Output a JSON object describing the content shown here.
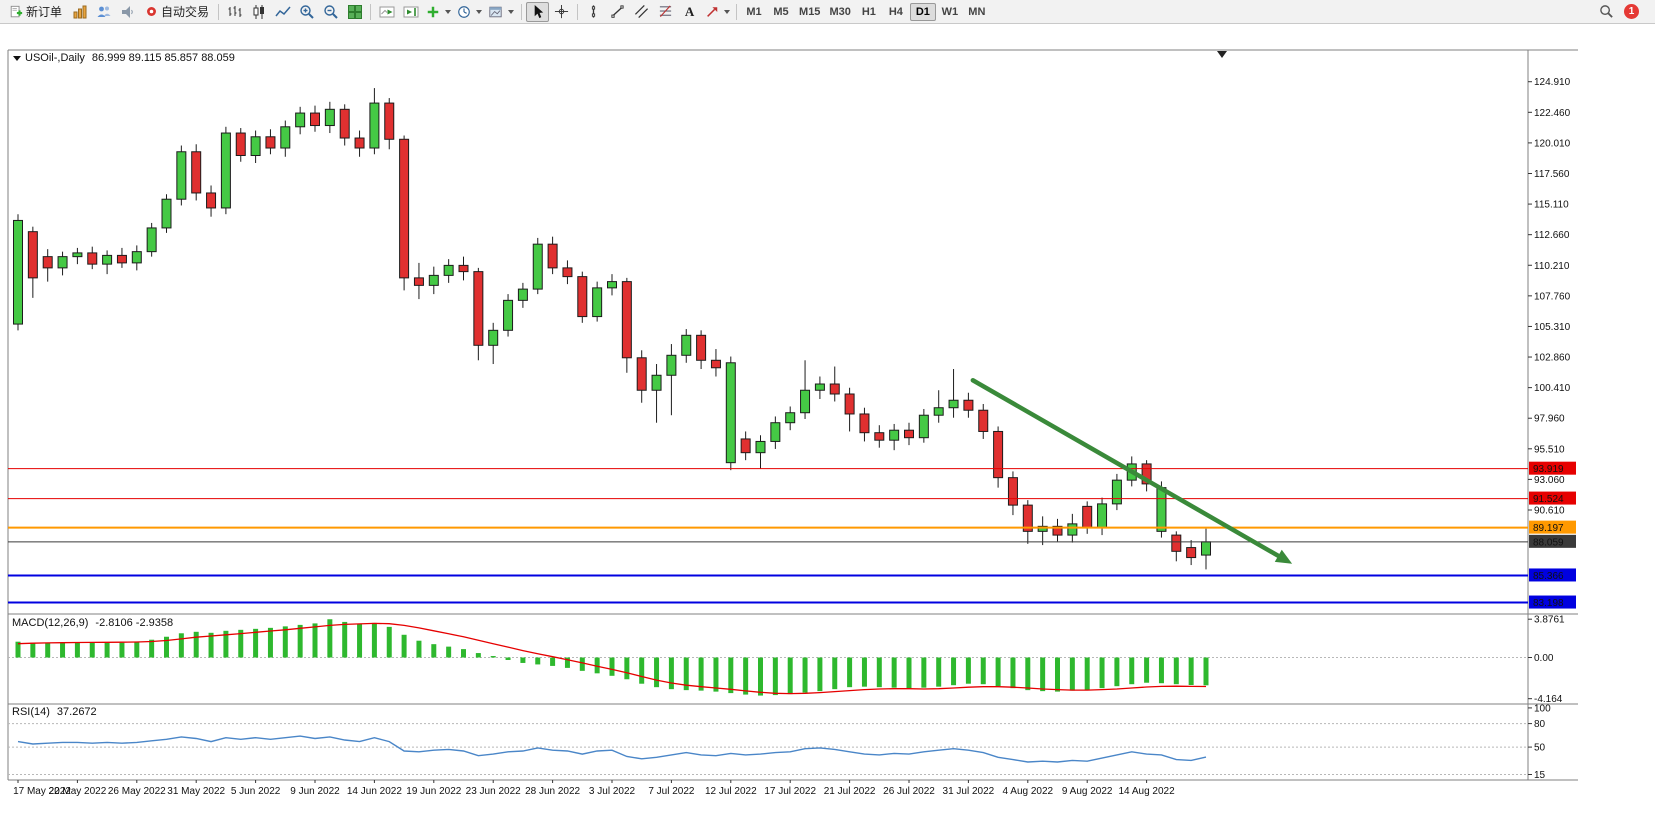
{
  "toolbar": {
    "new_order_label": "新订单",
    "auto_trading_label": "自动交易",
    "text_tool_label": "A",
    "timeframes": [
      "M1",
      "M5",
      "M15",
      "M30",
      "H1",
      "H4",
      "D1",
      "W1",
      "MN"
    ],
    "active_timeframe": "D1",
    "notification_count": "1"
  },
  "chart_header": {
    "symbol_period": "USOil-,Daily",
    "ohlc": "86.999 89.115 85.857 88.059"
  },
  "indicators": {
    "macd_label": "MACD(12,26,9)",
    "macd_values": "-2.8106 -2.9358",
    "rsi_label": "RSI(14)",
    "rsi_value": "37.2672"
  },
  "chart_data": {
    "type": "candlestick",
    "symbol": "USOil",
    "period": "Daily",
    "price_axis": {
      "min": 82.28,
      "max": 127.45,
      "ticks": [
        "124.910",
        "122.460",
        "120.010",
        "117.560",
        "115.110",
        "112.660",
        "110.210",
        "107.760",
        "105.310",
        "102.860",
        "100.410",
        "97.960",
        "95.510",
        "93.060",
        "90.610"
      ]
    },
    "x_labels": [
      "17 May 2022",
      "22 May 2022",
      "26 May 2022",
      "31 May 2022",
      "5 Jun 2022",
      "9 Jun 2022",
      "14 Jun 2022",
      "19 Jun 2022",
      "23 Jun 2022",
      "28 Jun 2022",
      "3 Jul 2022",
      "7 Jul 2022",
      "12 Jul 2022",
      "17 Jul 2022",
      "21 Jul 2022",
      "26 Jul 2022",
      "31 Jul 2022",
      "4 Aug 2022",
      "9 Aug 2022",
      "14 Aug 2022"
    ],
    "x_label_step": 4,
    "candles": [
      [
        105.5,
        114.3,
        105.0,
        113.8
      ],
      [
        112.9,
        113.3,
        107.6,
        109.2
      ],
      [
        110.9,
        111.5,
        108.9,
        110.0
      ],
      [
        110.0,
        111.3,
        109.4,
        110.9
      ],
      [
        110.9,
        111.6,
        110.3,
        111.2
      ],
      [
        111.2,
        111.7,
        109.9,
        110.3
      ],
      [
        110.3,
        111.4,
        109.5,
        111.0
      ],
      [
        111.0,
        111.6,
        110.0,
        110.4
      ],
      [
        110.4,
        111.8,
        109.8,
        111.3
      ],
      [
        111.3,
        113.6,
        110.9,
        113.2
      ],
      [
        113.2,
        115.9,
        112.8,
        115.5
      ],
      [
        115.5,
        119.8,
        115.0,
        119.3
      ],
      [
        119.3,
        119.9,
        115.4,
        116.0
      ],
      [
        116.0,
        116.6,
        114.1,
        114.8
      ],
      [
        114.8,
        121.3,
        114.3,
        120.8
      ],
      [
        120.8,
        121.2,
        118.5,
        119.0
      ],
      [
        119.0,
        121.0,
        118.4,
        120.5
      ],
      [
        120.5,
        121.1,
        119.1,
        119.6
      ],
      [
        119.6,
        121.8,
        118.9,
        121.3
      ],
      [
        121.3,
        122.9,
        120.7,
        122.4
      ],
      [
        122.4,
        123.0,
        120.9,
        121.4
      ],
      [
        121.4,
        123.3,
        120.8,
        122.7
      ],
      [
        122.7,
        123.1,
        119.8,
        120.4
      ],
      [
        120.4,
        121.0,
        118.9,
        119.6
      ],
      [
        119.6,
        124.4,
        119.1,
        123.2
      ],
      [
        123.2,
        123.6,
        119.5,
        120.3
      ],
      [
        120.3,
        120.6,
        108.2,
        109.2
      ],
      [
        109.2,
        110.4,
        107.5,
        108.6
      ],
      [
        108.6,
        110.1,
        107.9,
        109.4
      ],
      [
        109.4,
        110.7,
        108.8,
        110.2
      ],
      [
        110.2,
        110.9,
        109.0,
        109.7
      ],
      [
        109.7,
        110.0,
        102.6,
        103.8
      ],
      [
        103.8,
        105.6,
        102.3,
        105.0
      ],
      [
        105.0,
        107.9,
        104.5,
        107.4
      ],
      [
        107.4,
        108.8,
        106.8,
        108.3
      ],
      [
        108.3,
        112.4,
        107.9,
        111.9
      ],
      [
        111.9,
        112.5,
        109.5,
        110.0
      ],
      [
        110.0,
        110.6,
        108.7,
        109.3
      ],
      [
        109.3,
        109.7,
        105.6,
        106.1
      ],
      [
        106.1,
        108.9,
        105.7,
        108.4
      ],
      [
        108.4,
        109.5,
        107.8,
        108.9
      ],
      [
        108.9,
        109.2,
        101.6,
        102.8
      ],
      [
        102.8,
        103.4,
        99.2,
        100.2
      ],
      [
        100.2,
        102.3,
        97.6,
        101.4
      ],
      [
        101.4,
        103.9,
        98.2,
        103.0
      ],
      [
        103.0,
        105.1,
        102.4,
        104.6
      ],
      [
        104.6,
        105.0,
        101.9,
        102.6
      ],
      [
        102.6,
        103.5,
        101.3,
        102.0
      ],
      [
        94.4,
        102.9,
        93.8,
        102.4
      ],
      [
        96.3,
        96.9,
        94.6,
        95.2
      ],
      [
        95.2,
        96.6,
        93.9,
        96.1
      ],
      [
        96.1,
        98.1,
        95.5,
        97.6
      ],
      [
        97.6,
        98.9,
        97.0,
        98.4
      ],
      [
        98.4,
        102.6,
        97.9,
        100.2
      ],
      [
        100.2,
        101.3,
        99.5,
        100.7
      ],
      [
        100.7,
        102.1,
        99.3,
        99.9
      ],
      [
        99.9,
        100.4,
        96.9,
        98.3
      ],
      [
        98.3,
        98.8,
        96.1,
        96.8
      ],
      [
        96.8,
        97.4,
        95.6,
        96.2
      ],
      [
        96.2,
        97.5,
        95.4,
        97.0
      ],
      [
        97.0,
        97.6,
        95.8,
        96.4
      ],
      [
        96.4,
        98.7,
        96.0,
        98.2
      ],
      [
        98.2,
        100.2,
        97.6,
        98.8
      ],
      [
        98.8,
        101.9,
        98.0,
        99.4
      ],
      [
        99.4,
        100.0,
        98.0,
        98.6
      ],
      [
        98.6,
        99.1,
        96.3,
        96.9
      ],
      [
        96.9,
        97.3,
        92.4,
        93.2
      ],
      [
        93.2,
        93.7,
        90.2,
        91.0
      ],
      [
        91.0,
        91.4,
        87.9,
        88.9
      ],
      [
        88.9,
        90.1,
        87.8,
        89.3
      ],
      [
        89.3,
        89.9,
        88.1,
        88.6
      ],
      [
        88.6,
        90.3,
        88.0,
        89.5
      ],
      [
        90.9,
        91.3,
        88.7,
        89.2
      ],
      [
        89.2,
        91.6,
        88.6,
        91.1
      ],
      [
        91.1,
        93.5,
        90.6,
        93.0
      ],
      [
        93.0,
        94.9,
        92.5,
        94.3
      ],
      [
        94.3,
        94.6,
        92.1,
        92.7
      ],
      [
        88.9,
        92.9,
        88.4,
        92.4
      ],
      [
        88.6,
        88.9,
        86.5,
        87.3
      ],
      [
        87.6,
        88.2,
        86.2,
        86.8
      ],
      [
        86.999,
        89.115,
        85.857,
        88.059
      ]
    ],
    "levels": [
      {
        "value": 93.919,
        "label": "93.919",
        "color": "#e60000",
        "width": 1
      },
      {
        "value": 91.524,
        "label": "91.524",
        "color": "#e60000",
        "width": 1
      },
      {
        "value": 89.197,
        "label": "89.197",
        "color": "#ff9900",
        "width": 2
      },
      {
        "value": 88.059,
        "label": "88.059",
        "color": "#3a3a3a",
        "width": 1
      },
      {
        "value": 85.366,
        "label": "85.366",
        "color": "#0000e0",
        "width": 2
      },
      {
        "value": 83.198,
        "label": "83.198",
        "color": "#0000e0",
        "width": 2
      }
    ],
    "trend_arrow": {
      "from_index": 64.3,
      "from_price": 101.0,
      "to_index": 85.8,
      "to_price": 86.3,
      "color": "#3a8a3a"
    },
    "macd": {
      "histogram": [
        1.6,
        1.5,
        1.45,
        1.5,
        1.55,
        1.5,
        1.55,
        1.5,
        1.6,
        1.8,
        2.1,
        2.45,
        2.6,
        2.5,
        2.7,
        2.8,
        2.9,
        3.0,
        3.15,
        3.3,
        3.45,
        3.87,
        3.6,
        3.4,
        3.5,
        3.1,
        2.3,
        1.7,
        1.35,
        1.1,
        0.85,
        0.45,
        0.15,
        -0.25,
        -0.55,
        -0.7,
        -0.85,
        -1.05,
        -1.35,
        -1.6,
        -1.85,
        -2.2,
        -2.65,
        -3.0,
        -3.2,
        -3.3,
        -3.35,
        -3.45,
        -3.6,
        -3.75,
        -3.85,
        -3.8,
        -3.7,
        -3.55,
        -3.4,
        -3.2,
        -3.0,
        -2.95,
        -3.0,
        -3.05,
        -3.1,
        -3.05,
        -2.95,
        -2.8,
        -2.65,
        -2.7,
        -2.9,
        -3.1,
        -3.3,
        -3.4,
        -3.45,
        -3.35,
        -3.25,
        -3.1,
        -2.9,
        -2.7,
        -2.55,
        -2.6,
        -2.7,
        -2.78,
        -2.8106
      ],
      "signal": [
        1.4,
        1.45,
        1.48,
        1.5,
        1.52,
        1.53,
        1.54,
        1.55,
        1.57,
        1.62,
        1.72,
        1.88,
        2.05,
        2.18,
        2.3,
        2.42,
        2.55,
        2.68,
        2.8,
        2.95,
        3.1,
        3.25,
        3.35,
        3.4,
        3.45,
        3.42,
        3.25,
        3.0,
        2.7,
        2.4,
        2.1,
        1.75,
        1.4,
        1.05,
        0.7,
        0.38,
        0.08,
        -0.22,
        -0.55,
        -0.88,
        -1.2,
        -1.55,
        -1.92,
        -2.28,
        -2.58,
        -2.8,
        -2.95,
        -3.08,
        -3.22,
        -3.38,
        -3.52,
        -3.62,
        -3.65,
        -3.62,
        -3.55,
        -3.45,
        -3.35,
        -3.25,
        -3.18,
        -3.15,
        -3.15,
        -3.18,
        -3.15,
        -3.08,
        -3.0,
        -2.95,
        -2.95,
        -3.0,
        -3.08,
        -3.18,
        -3.25,
        -3.3,
        -3.3,
        -3.25,
        -3.18,
        -3.08,
        -2.98,
        -2.92,
        -2.9,
        -2.92,
        -2.9358
      ],
      "axis_labels": [
        "3.8761",
        "0.00",
        "-4.164"
      ],
      "range": [
        -4.5,
        4.3
      ]
    },
    "rsi": {
      "values": [
        57,
        54,
        55,
        56,
        56,
        55,
        56,
        55,
        56,
        58,
        60,
        63,
        61,
        57,
        62,
        60,
        62,
        60,
        62,
        64,
        61,
        63,
        59,
        57,
        62,
        57,
        45,
        44,
        46,
        47,
        45,
        39,
        41,
        44,
        45,
        49,
        46,
        45,
        41,
        45,
        46,
        38,
        35,
        37,
        40,
        43,
        40,
        39,
        42,
        40,
        41,
        43,
        44,
        48,
        49,
        47,
        44,
        41,
        40,
        42,
        41,
        44,
        46,
        48,
        46,
        43,
        37,
        34,
        31,
        32,
        31,
        33,
        32,
        36,
        40,
        44,
        41,
        40,
        34,
        33,
        37.2672
      ],
      "axis_labels": [
        "100",
        "80",
        "50",
        "15"
      ],
      "levels": [
        80,
        50,
        15
      ],
      "range": [
        8,
        105
      ]
    },
    "colors": {
      "bull": "#45c945",
      "bear": "#e03030",
      "outline": "#1c1c1c",
      "macd_hist": "#2eb82e",
      "macd_signal": "#e60000",
      "rsi_line": "#4a86c8"
    }
  }
}
